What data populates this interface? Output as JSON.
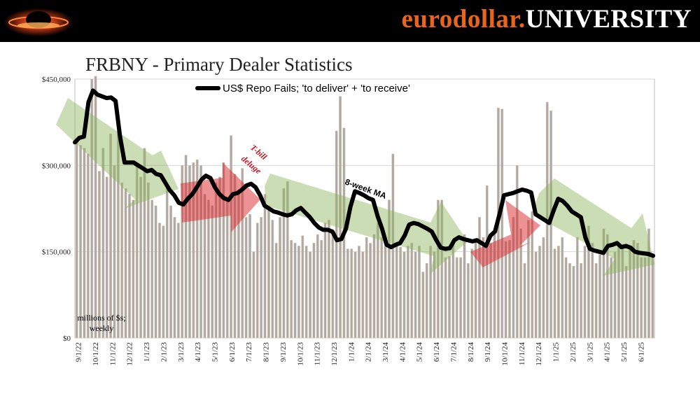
{
  "header": {
    "brand_part1": "eurodollar.",
    "brand_part2": "UNIVERSITY",
    "logo_icon": "bowl-logo-icon"
  },
  "slide_title": "FRBNY - Primary Dealer Statistics",
  "chart_data": {
    "type": "bar",
    "title": "FRBNY - Primary Dealer Statistics",
    "ylim": [
      0,
      450000
    ],
    "y_ticks": [
      "$0",
      "$150,000",
      "$300,000",
      "$450,000"
    ],
    "y_tick_values": [
      0,
      150000,
      300000,
      450000
    ],
    "x_tick_labels": [
      "9/1/22",
      "10/1/22",
      "11/1/22",
      "12/1/22",
      "1/1/23",
      "2/1/23",
      "3/1/23",
      "4/1/23",
      "5/1/23",
      "6/1/23",
      "7/1/23",
      "8/1/23",
      "9/1/23",
      "10/1/23",
      "11/1/23",
      "12/1/23",
      "1/1/24",
      "2/1/24",
      "3/1/24",
      "4/1/24",
      "5/1/24",
      "6/1/24",
      "7/1/24",
      "8/1/24",
      "9/1/24",
      "10/1/24",
      "11/1/24",
      "12/1/24",
      "1/1/25",
      "2/1/25",
      "3/1/25",
      "4/1/25",
      "5/1/25",
      "6/1/25"
    ],
    "grid": true,
    "legend": {
      "label": "US$ Repo Fails; 'to deliver' + 'to receive'",
      "placement": "top-center"
    },
    "units_note_line1": "millions of $s;",
    "units_note_line2": "weekly",
    "annotations": {
      "tbill_line1": "T-bill",
      "tbill_line2": "deluge",
      "ma_label": "8-week MA"
    },
    "series": [
      {
        "name": "US$ Repo Fails; 'to deliver' + 'to receive' (weekly)",
        "kind": "bar",
        "color": "#aaaaaa",
        "values": [
          340000,
          335000,
          330000,
          320000,
          450000,
          455000,
          290000,
          330000,
          280000,
          355000,
          300000,
          360000,
          270000,
          260000,
          250000,
          240000,
          300000,
          280000,
          330000,
          270000,
          240000,
          230000,
          200000,
          195000,
          260000,
          230000,
          210000,
          200000,
          300000,
          318000,
          300000,
          305000,
          310000,
          300000,
          250000,
          240000,
          230000,
          270000,
          280000,
          305000,
          240000,
          352000,
          285000,
          255000,
          295000,
          210000,
          215000,
          150000,
          200000,
          210000,
          250000,
          230000,
          205000,
          165000,
          210000,
          260000,
          272000,
          170000,
          165000,
          160000,
          178000,
          160000,
          150000,
          165000,
          180000,
          170000,
          200000,
          205000,
          185000,
          360000,
          420000,
          365000,
          155000,
          155000,
          150000,
          160000,
          150000,
          175000,
          165000,
          180000,
          200000,
          175000,
          160000,
          240000,
          320000,
          160000,
          158000,
          150000,
          160000,
          165000,
          150000,
          160000,
          115000,
          130000,
          160000,
          150000,
          240000,
          240000,
          140000,
          142000,
          165000,
          140000,
          140000,
          180000,
          130000,
          155000,
          170000,
          210000,
          175000,
          265000,
          165000,
          185000,
          400000,
          398000,
          168000,
          170000,
          210000,
          300000,
          190000,
          130000,
          205000,
          220000,
          150000,
          160000,
          175000,
          410000,
          395000,
          155000,
          160000,
          175000,
          140000,
          130000,
          125000,
          175000,
          130000,
          160000,
          195000,
          165000,
          130000,
          145000,
          190000,
          180000,
          140000,
          150000,
          165000,
          160000,
          125000,
          160000,
          170000,
          165000,
          140000,
          140000,
          190000,
          140000
        ]
      },
      {
        "name": "8-week MA",
        "kind": "line",
        "color": "#000000",
        "values": [
          340000,
          348000,
          350000,
          410000,
          430000,
          423000,
          420000,
          417000,
          418000,
          412000,
          350000,
          305000,
          305000,
          305000,
          300000,
          295000,
          290000,
          292000,
          285000,
          283000,
          270000,
          257000,
          248000,
          235000,
          232000,
          242000,
          250000,
          262000,
          275000,
          282000,
          278000,
          262000,
          250000,
          243000,
          240000,
          250000,
          252000,
          258000,
          265000,
          268000,
          262000,
          248000,
          230000,
          225000,
          220000,
          218000,
          215000,
          213000,
          215000,
          222000,
          226000,
          218000,
          210000,
          200000,
          192000,
          188000,
          188000,
          185000,
          170000,
          172000,
          190000,
          228000,
          255000,
          252000,
          248000,
          243000,
          240000,
          212000,
          190000,
          162000,
          158000,
          162000,
          165000,
          178000,
          197000,
          200000,
          198000,
          194000,
          190000,
          185000,
          170000,
          157000,
          155000,
          156000,
          170000,
          175000,
          172000,
          170000,
          168000,
          170000,
          165000,
          160000,
          178000,
          185000,
          215000,
          248000,
          250000,
          252000,
          255000,
          258000,
          256000,
          253000,
          215000,
          210000,
          205000,
          200000,
          222000,
          242000,
          238000,
          230000,
          220000,
          215000,
          210000,
          175000,
          155000,
          152000,
          150000,
          148000,
          160000,
          162000,
          165000,
          158000,
          160000,
          157000,
          150000,
          148000,
          147000,
          146000,
          143000
        ]
      }
    ]
  }
}
